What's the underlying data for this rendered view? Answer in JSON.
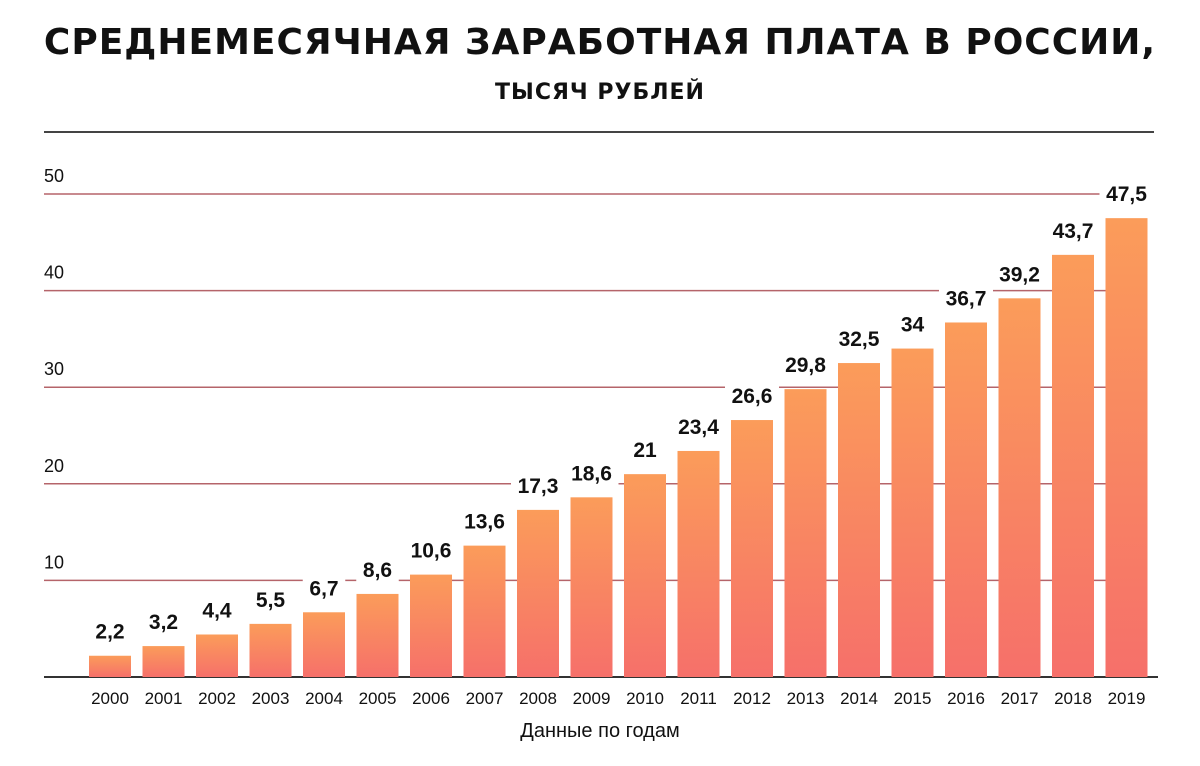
{
  "title": "СРЕДНЕМЕСЯЧНАЯ ЗАРАБОТНАЯ ПЛАТА В РОССИИ,",
  "subtitle": "ТЫСЯЧ РУБЛЕЙ",
  "colors": {
    "bar_top": "#fb9c5a",
    "bar_bottom": "#f6706a",
    "gridline": "#b5646a",
    "axis": "#333333"
  },
  "chart_data": {
    "type": "bar",
    "title": "СРЕДНЕМЕСЯЧНАЯ ЗАРАБОТНАЯ ПЛАТА В РОССИИ,",
    "subtitle": "ТЫСЯЧ РУБЛЕЙ",
    "xlabel": "Данные по годам",
    "ylabel": "",
    "ylim": [
      0,
      50
    ],
    "yticks": [
      10,
      20,
      30,
      40,
      50
    ],
    "grid": true,
    "categories": [
      "2000",
      "2001",
      "2002",
      "2003",
      "2004",
      "2005",
      "2006",
      "2007",
      "2008",
      "2009",
      "2010",
      "2011",
      "2012",
      "2013",
      "2014",
      "2015",
      "2016",
      "2017",
      "2018",
      "2019"
    ],
    "values": [
      2.2,
      3.2,
      4.4,
      5.5,
      6.7,
      8.6,
      10.6,
      13.6,
      17.3,
      18.6,
      21,
      23.4,
      26.6,
      29.8,
      32.5,
      34,
      36.7,
      39.2,
      43.7,
      47.5
    ],
    "value_labels": [
      "2,2",
      "3,2",
      "4,4",
      "5,5",
      "6,7",
      "8,6",
      "10,6",
      "13,6",
      "17,3",
      "18,6",
      "21",
      "23,4",
      "26,6",
      "29,8",
      "32,5",
      "34",
      "36,7",
      "39,2",
      "43,7",
      "47,5"
    ]
  }
}
